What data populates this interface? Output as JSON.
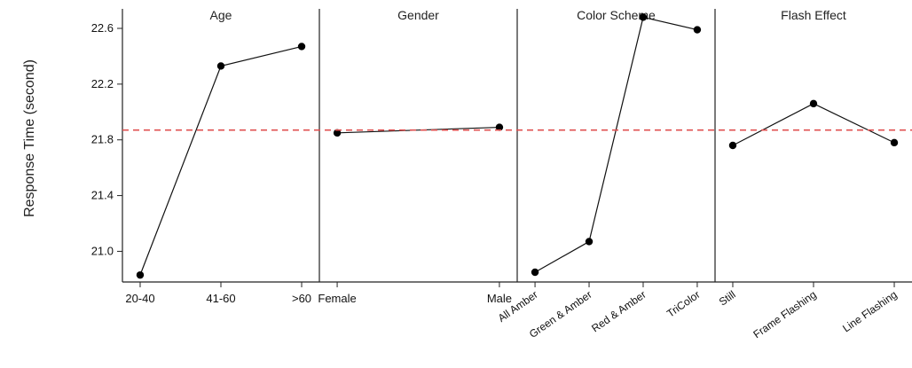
{
  "chart_data": {
    "type": "line",
    "title": "",
    "ylabel": "Response Time (second)",
    "ylim": [
      20.78,
      22.74
    ],
    "yticks": [
      21.0,
      21.4,
      21.8,
      22.2,
      22.6
    ],
    "ytick_labels": [
      "21.0",
      "21.4",
      "21.8",
      "22.2",
      "22.6"
    ],
    "reference_line": {
      "value": 21.87,
      "color": "#e05050",
      "style": "dashed"
    },
    "line_color": "#111111",
    "panels": [
      {
        "title": "Age",
        "categories": [
          "20-40",
          "41-60",
          ">60"
        ],
        "values": [
          20.83,
          22.33,
          22.47
        ],
        "label_rotation": 0
      },
      {
        "title": "Gender",
        "categories": [
          "Female",
          "Male"
        ],
        "values": [
          21.85,
          21.89
        ],
        "label_rotation": 0
      },
      {
        "title": "Color Scheme",
        "categories": [
          "All Amber",
          "Green & Amber",
          "Red & Amber",
          "TriColor"
        ],
        "values": [
          20.85,
          21.07,
          22.68,
          22.59
        ],
        "label_rotation": -35
      },
      {
        "title": "Flash Effect",
        "categories": [
          "Still",
          "Frame Flashing",
          "Line Flashing"
        ],
        "values": [
          21.76,
          22.06,
          21.78
        ],
        "label_rotation": -35
      }
    ]
  }
}
